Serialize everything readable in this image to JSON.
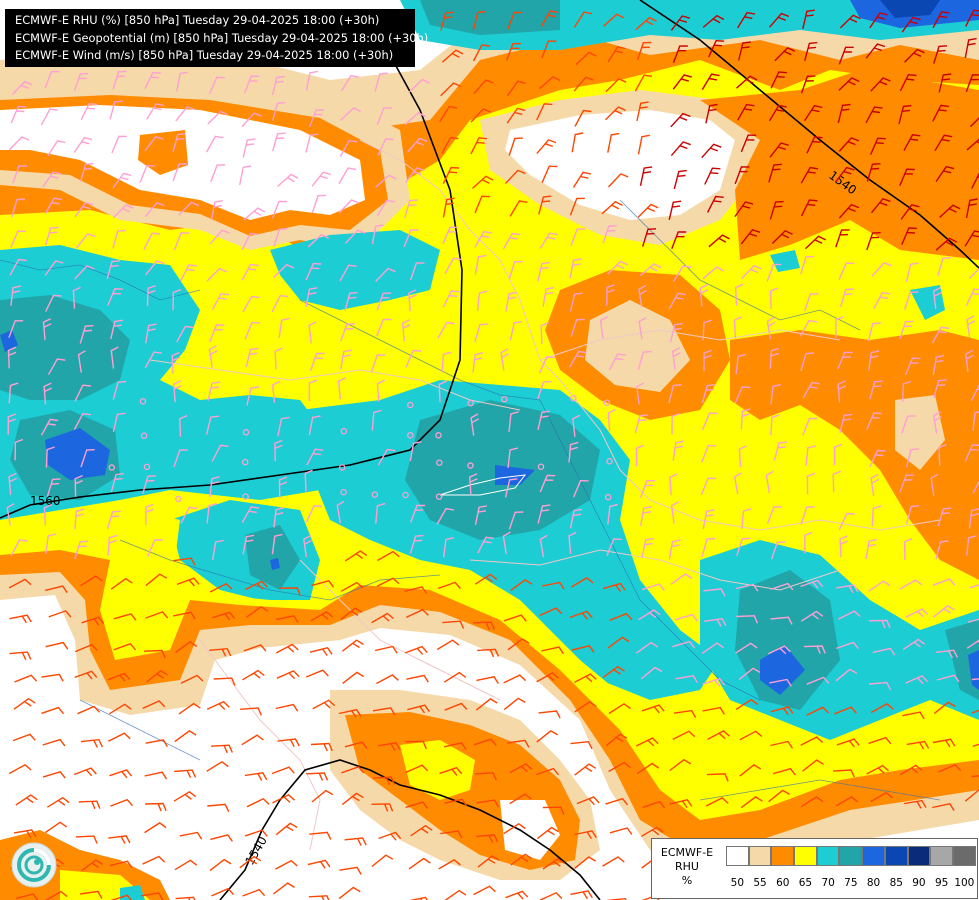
{
  "header": {
    "lines": [
      "ECMWF-E RHU (%) [850 hPa] Tuesday 29-04-2025 18:00 (+30h)",
      "ECMWF-E Geopotential (m) [850 hPa] Tuesday 29-04-2025 18:00 (+30h)",
      "ECMWF-E Wind (m/s) [850 hPa] Tuesday 29-04-2025 18:00 (+30h)"
    ]
  },
  "contours": {
    "labels": [
      "1540",
      "1560",
      "1540"
    ]
  },
  "legend": {
    "title_line1": "ECMWF-E",
    "title_line2": "RHU",
    "title_line3": "%",
    "levels": [
      "50",
      "55",
      "60",
      "65",
      "70",
      "75",
      "80",
      "85",
      "90",
      "95",
      "100"
    ],
    "colors": [
      "#ffffff",
      "#f6d9a9",
      "#ff8c00",
      "#ffff00",
      "#1ccdd3",
      "#21a5a8",
      "#1c66e0",
      "#0b47b3",
      "#0a2b7a",
      "#a7a7a7",
      "#6b6b6b"
    ]
  },
  "map_colors": {
    "rhu_50": "#ffffff",
    "rhu_55": "#f6d9a9",
    "rhu_60": "#ff8c00",
    "rhu_65": "#ffff00",
    "rhu_70": "#1ccdd3",
    "rhu_75": "#21a5a8",
    "rhu_80": "#1c66e0",
    "wind_low": "#ff9fd3",
    "wind_mid": "#ff4500",
    "wind_high": "#cc0000"
  },
  "logo": {
    "icon": "ecmwf-swirl-icon"
  }
}
